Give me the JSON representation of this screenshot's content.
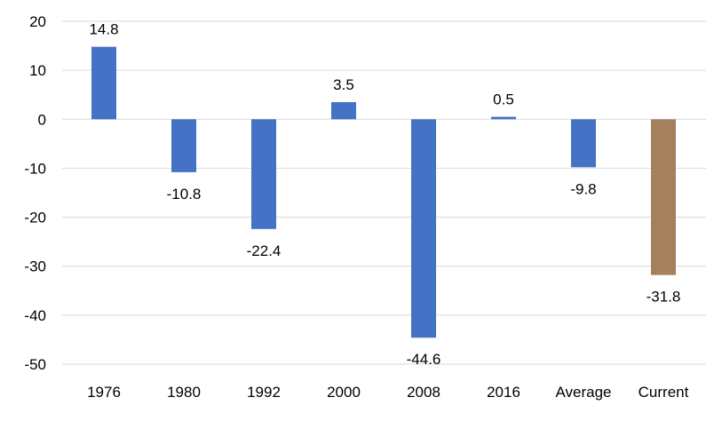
{
  "chart_data": {
    "type": "bar",
    "categories": [
      "1976",
      "1980",
      "1992",
      "2000",
      "2008",
      "2016",
      "Average",
      "Current"
    ],
    "values": [
      14.8,
      -10.8,
      -22.4,
      3.5,
      -44.6,
      0.5,
      -9.8,
      -31.8
    ],
    "data_labels": [
      "14.8",
      "-10.8",
      "-22.4",
      "3.5",
      "-44.6",
      "0.5",
      "-9.8",
      "-31.8"
    ],
    "yticks": [
      20,
      10,
      0,
      -10,
      -20,
      -30,
      -40,
      -50
    ],
    "ytick_labels": [
      "20",
      "10",
      "0",
      "-10",
      "-20",
      "-30",
      "-40",
      "-50"
    ],
    "ylim": [
      -50,
      20
    ],
    "grid": true,
    "legend": "none",
    "colors": {
      "default_bar": "#4472c4",
      "highlight_bar": "#a5805f",
      "highlight_index": 7,
      "grid": "#d9d9d9"
    }
  }
}
